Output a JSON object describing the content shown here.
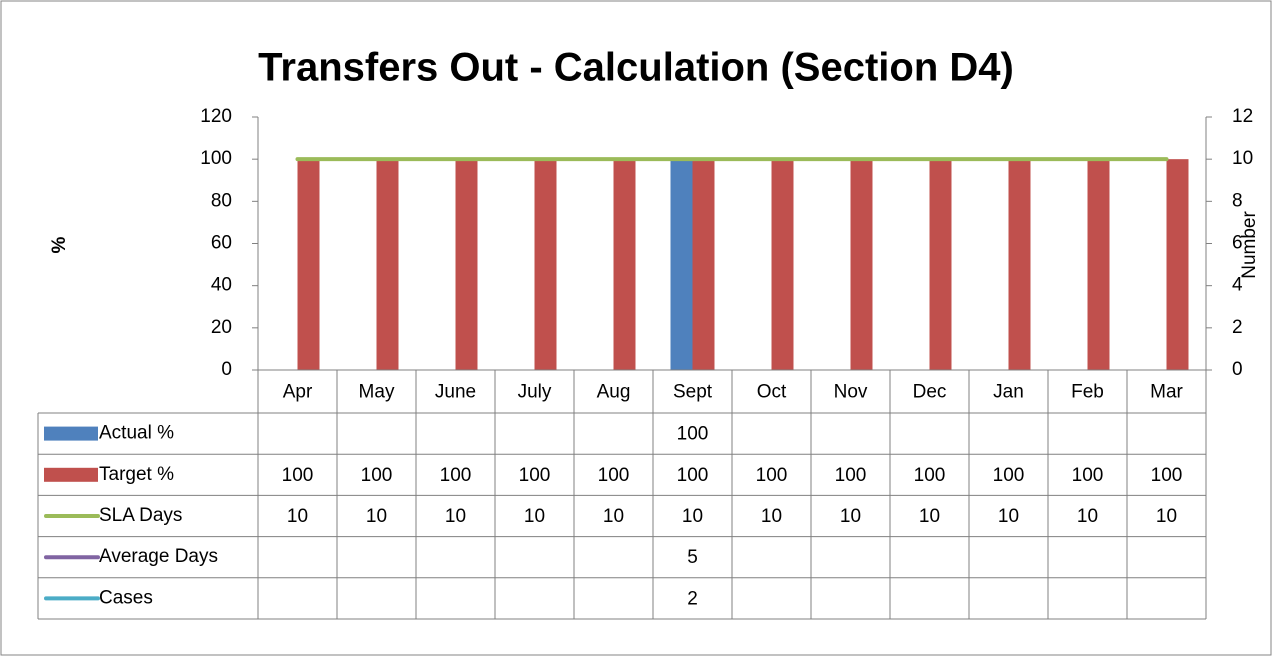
{
  "chart_data": {
    "type": "bar",
    "title": "Transfers Out - Calculation (Section D4)",
    "y_label": "%",
    "y2_label": "Number",
    "categories": [
      "Apr",
      "May",
      "June",
      "July",
      "Aug",
      "Sept",
      "Oct",
      "Nov",
      "Dec",
      "Jan",
      "Feb",
      "Mar"
    ],
    "series": [
      {
        "name": "Actual %",
        "type": "bar",
        "color": "#4f81bd",
        "values": [
          null,
          null,
          null,
          null,
          null,
          100,
          null,
          null,
          null,
          null,
          null,
          null
        ]
      },
      {
        "name": "Target %",
        "type": "bar",
        "color": "#c0504d",
        "values": [
          100,
          100,
          100,
          100,
          100,
          100,
          100,
          100,
          100,
          100,
          100,
          100
        ]
      },
      {
        "name": "SLA Days",
        "type": "line",
        "axis": "y2",
        "color": "#9bbb59",
        "values": [
          10,
          10,
          10,
          10,
          10,
          10,
          10,
          10,
          10,
          10,
          10,
          10
        ]
      },
      {
        "name": "Average Days",
        "type": "line",
        "axis": "y2",
        "color": "#8064a2",
        "values": [
          null,
          null,
          null,
          null,
          null,
          5,
          null,
          null,
          null,
          null,
          null,
          null
        ]
      },
      {
        "name": "Cases",
        "type": "line",
        "axis": "y2",
        "color": "#4bacc6",
        "values": [
          null,
          null,
          null,
          null,
          null,
          2,
          null,
          null,
          null,
          null,
          null,
          null
        ]
      }
    ],
    "ylim": [
      0,
      120
    ],
    "yticks": [
      0,
      20,
      40,
      60,
      80,
      100,
      120
    ],
    "y2lim": [
      0,
      12
    ],
    "y2ticks": [
      0,
      2,
      4,
      6,
      8,
      10,
      12
    ],
    "data_table": true
  }
}
